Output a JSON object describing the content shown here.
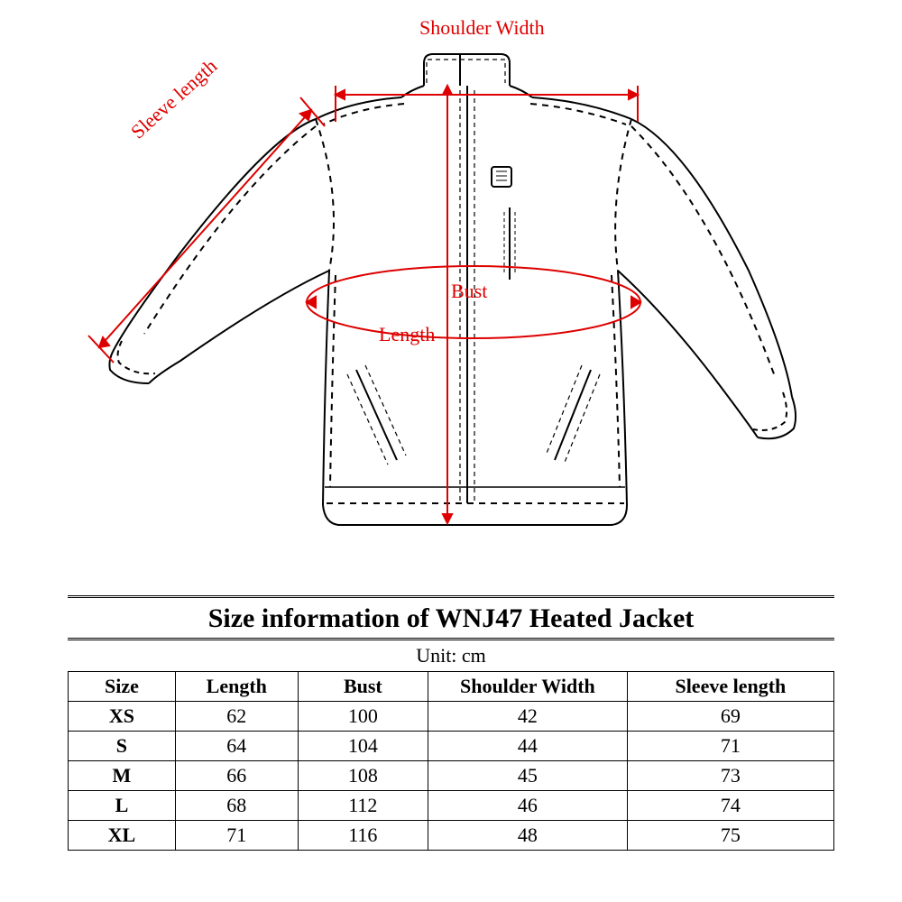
{
  "diagram": {
    "labels": {
      "shoulder_width": "Shoulder Width",
      "sleeve_length": "Sleeve length",
      "bust": "Bust",
      "length": "Length"
    },
    "colors": {
      "annotation": "#de0000",
      "outline": "#000000",
      "background": "#ffffff"
    }
  },
  "table": {
    "title": "Size information of WNJ47 Heated Jacket",
    "unit": "Unit: cm",
    "columns": [
      "Size",
      "Length",
      "Bust",
      "Shoulder Width",
      "Sleeve length"
    ],
    "col_widths": [
      "14%",
      "16%",
      "17%",
      "26%",
      "27%"
    ],
    "rows": [
      [
        "XS",
        "62",
        "100",
        "42",
        "69"
      ],
      [
        "S",
        "64",
        "104",
        "44",
        "71"
      ],
      [
        "M",
        "66",
        "108",
        "45",
        "73"
      ],
      [
        "L",
        "68",
        "112",
        "46",
        "74"
      ],
      [
        "XL",
        "71",
        "116",
        "48",
        "75"
      ]
    ]
  }
}
